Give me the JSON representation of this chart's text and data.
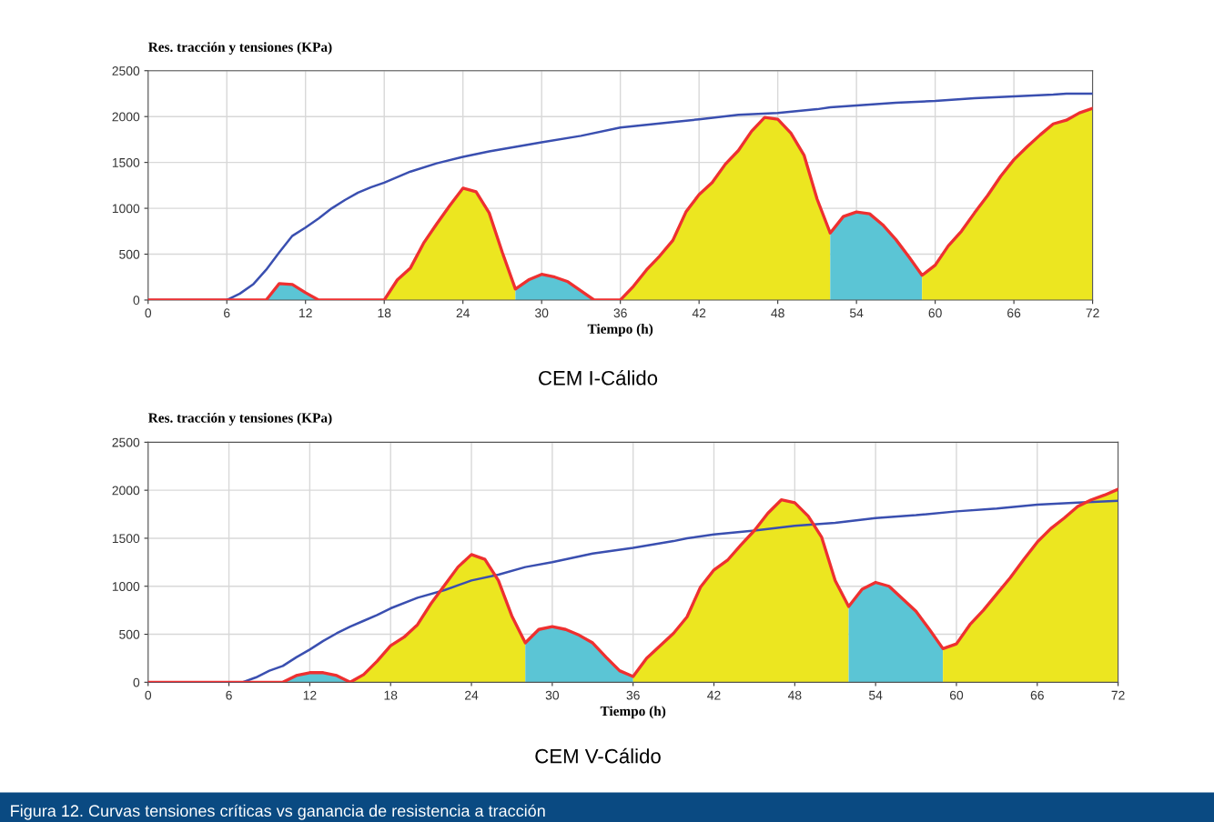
{
  "chart_data": [
    {
      "type": "line",
      "title": "CEM I-Cálido",
      "ylabel": "Res. tracción y tensiones (KPa)",
      "xlabel": "Tiempo (h)",
      "xlim": [
        0,
        72
      ],
      "xticks": [
        0,
        6,
        12,
        18,
        24,
        30,
        36,
        42,
        48,
        54,
        60,
        66,
        72
      ],
      "ylim": [
        0,
        2500
      ],
      "yticks": [
        0,
        500,
        1000,
        1500,
        2000,
        2500
      ],
      "grid": true,
      "legend": false,
      "marker": "none",
      "line_style": "solid",
      "annotations": [
        "Figura 12. Curvas tensiones críticas vs ganancia de resistencia a tracción"
      ],
      "series": [
        {
          "type": "area",
          "color": "#5bc5d5",
          "x": [
            9,
            10,
            11,
            12,
            13
          ],
          "values": [
            0,
            180,
            170,
            80,
            0
          ]
        },
        {
          "type": "area",
          "color": "#ece620",
          "x": [
            18,
            19,
            20,
            21,
            22,
            23,
            24,
            25,
            26,
            27,
            28
          ],
          "values": [
            0,
            220,
            350,
            620,
            830,
            1030,
            1220,
            1180,
            950,
            520,
            120
          ]
        },
        {
          "type": "area",
          "color": "#5bc5d5",
          "x": [
            28,
            29,
            30,
            31,
            32,
            33,
            34
          ],
          "values": [
            120,
            220,
            280,
            250,
            200,
            100,
            0
          ]
        },
        {
          "type": "area",
          "color": "#ece620",
          "x": [
            36,
            37,
            38,
            39,
            40,
            41,
            42,
            43,
            44,
            45,
            46,
            47,
            48,
            49,
            50,
            51,
            52
          ],
          "values": [
            0,
            150,
            330,
            480,
            650,
            960,
            1150,
            1280,
            1480,
            1630,
            1840,
            1990,
            1970,
            1820,
            1580,
            1100,
            730
          ]
        },
        {
          "type": "area",
          "color": "#5bc5d5",
          "x": [
            52,
            53,
            54,
            55,
            56,
            57,
            58,
            59
          ],
          "values": [
            730,
            910,
            960,
            940,
            820,
            660,
            470,
            270
          ]
        },
        {
          "type": "area",
          "color": "#ece620",
          "x": [
            59,
            60,
            61,
            62,
            63,
            64,
            65,
            66,
            67,
            68,
            69,
            70,
            71,
            72
          ],
          "values": [
            270,
            380,
            590,
            750,
            950,
            1140,
            1350,
            1530,
            1670,
            1800,
            1920,
            1960,
            2040,
            2090
          ]
        },
        {
          "type": "line",
          "color": "#3a4fb0",
          "x": [
            0,
            6,
            7,
            8,
            9,
            10,
            11,
            12,
            13,
            14,
            15,
            16,
            17,
            18,
            20,
            22,
            24,
            26,
            28,
            30,
            33,
            36,
            40,
            42,
            45,
            48,
            51,
            52,
            54,
            57,
            60,
            63,
            66,
            69,
            70,
            72
          ],
          "values": [
            0,
            0,
            70,
            170,
            330,
            520,
            700,
            790,
            890,
            1000,
            1090,
            1170,
            1230,
            1280,
            1400,
            1490,
            1560,
            1620,
            1670,
            1720,
            1790,
            1880,
            1940,
            1970,
            2020,
            2040,
            2080,
            2100,
            2120,
            2150,
            2170,
            2200,
            2220,
            2240,
            2250,
            2250
          ]
        },
        {
          "type": "line",
          "color": "#ee3030",
          "x": [
            0,
            1,
            2,
            3,
            4,
            5,
            6,
            7,
            8,
            9,
            10,
            11,
            12,
            13,
            14,
            15,
            16,
            17,
            18,
            19,
            20,
            21,
            22,
            23,
            24,
            25,
            26,
            27,
            28,
            29,
            30,
            31,
            32,
            33,
            34,
            35,
            36,
            37,
            38,
            39,
            40,
            41,
            42,
            43,
            44,
            45,
            46,
            47,
            48,
            49,
            50,
            51,
            52,
            53,
            54,
            55,
            56,
            57,
            58,
            59,
            60,
            61,
            62,
            63,
            64,
            65,
            66,
            67,
            68,
            69,
            70,
            71,
            72
          ],
          "values": [
            0,
            0,
            0,
            0,
            0,
            0,
            0,
            0,
            0,
            0,
            180,
            170,
            80,
            0,
            0,
            0,
            0,
            0,
            0,
            220,
            350,
            620,
            830,
            1030,
            1220,
            1180,
            950,
            520,
            120,
            220,
            280,
            250,
            200,
            100,
            0,
            0,
            0,
            150,
            330,
            480,
            650,
            960,
            1150,
            1280,
            1480,
            1630,
            1840,
            1990,
            1970,
            1820,
            1580,
            1100,
            730,
            910,
            960,
            940,
            820,
            660,
            470,
            270,
            380,
            590,
            750,
            950,
            1140,
            1350,
            1530,
            1670,
            1800,
            1920,
            1960,
            2040,
            2090
          ]
        }
      ]
    },
    {
      "type": "line",
      "title": "CEM V-Cálido",
      "ylabel": "Res. tracción y tensiones (KPa)",
      "xlabel": "Tiempo (h)",
      "xlim": [
        0,
        72
      ],
      "xticks": [
        0,
        6,
        12,
        18,
        24,
        30,
        36,
        42,
        48,
        54,
        60,
        66,
        72
      ],
      "ylim": [
        0,
        2500
      ],
      "yticks": [
        0,
        500,
        1000,
        1500,
        2000,
        2500
      ],
      "grid": true,
      "legend": false,
      "marker": "none",
      "line_style": "solid",
      "series": [
        {
          "type": "area",
          "color": "#5bc5d5",
          "x": [
            10,
            11,
            12,
            13,
            14,
            15
          ],
          "values": [
            0,
            70,
            100,
            100,
            70,
            0
          ]
        },
        {
          "type": "area",
          "color": "#ece620",
          "x": [
            15,
            16,
            17,
            18,
            19,
            20,
            21,
            22,
            23,
            24,
            25,
            26,
            27,
            28
          ],
          "values": [
            0,
            80,
            220,
            380,
            470,
            600,
            820,
            1010,
            1200,
            1330,
            1280,
            1060,
            690,
            410
          ]
        },
        {
          "type": "area",
          "color": "#5bc5d5",
          "x": [
            28,
            29,
            30,
            31,
            32,
            33,
            34,
            35,
            36
          ],
          "values": [
            410,
            550,
            580,
            550,
            490,
            410,
            260,
            120,
            60
          ]
        },
        {
          "type": "area",
          "color": "#ece620",
          "x": [
            36,
            37,
            38,
            39,
            40,
            41,
            42,
            43,
            44,
            45,
            46,
            47,
            48,
            49,
            50,
            51,
            52
          ],
          "values": [
            60,
            250,
            380,
            510,
            680,
            990,
            1170,
            1270,
            1430,
            1580,
            1760,
            1900,
            1870,
            1730,
            1510,
            1060,
            790
          ]
        },
        {
          "type": "area",
          "color": "#5bc5d5",
          "x": [
            52,
            53,
            54,
            55,
            56,
            57,
            58,
            59
          ],
          "values": [
            790,
            970,
            1040,
            1000,
            870,
            740,
            550,
            350
          ]
        },
        {
          "type": "area",
          "color": "#ece620",
          "x": [
            59,
            60,
            61,
            62,
            63,
            64,
            65,
            66,
            67,
            68,
            69,
            70,
            71,
            72
          ],
          "values": [
            350,
            400,
            600,
            750,
            920,
            1090,
            1280,
            1460,
            1600,
            1710,
            1830,
            1900,
            1950,
            2010
          ]
        },
        {
          "type": "line",
          "color": "#3a4fb0",
          "x": [
            0,
            7,
            8,
            9,
            10,
            11,
            12,
            13,
            14,
            15,
            16,
            17,
            18,
            20,
            22,
            24,
            26,
            28,
            30,
            33,
            36,
            39,
            40,
            42,
            45,
            48,
            51,
            54,
            57,
            60,
            63,
            66,
            69,
            72
          ],
          "values": [
            0,
            0,
            50,
            120,
            170,
            260,
            340,
            430,
            510,
            580,
            640,
            700,
            770,
            880,
            960,
            1060,
            1120,
            1200,
            1250,
            1340,
            1400,
            1470,
            1500,
            1540,
            1580,
            1630,
            1660,
            1710,
            1740,
            1780,
            1810,
            1850,
            1870,
            1890
          ]
        },
        {
          "type": "line",
          "color": "#ee3030",
          "x": [
            0,
            1,
            2,
            3,
            4,
            5,
            6,
            7,
            8,
            9,
            10,
            11,
            12,
            13,
            14,
            15,
            16,
            17,
            18,
            19,
            20,
            21,
            22,
            23,
            24,
            25,
            26,
            27,
            28,
            29,
            30,
            31,
            32,
            33,
            34,
            35,
            36,
            37,
            38,
            39,
            40,
            41,
            42,
            43,
            44,
            45,
            46,
            47,
            48,
            49,
            50,
            51,
            52,
            53,
            54,
            55,
            56,
            57,
            58,
            59,
            60,
            61,
            62,
            63,
            64,
            65,
            66,
            67,
            68,
            69,
            70,
            71,
            72
          ],
          "values": [
            0,
            0,
            0,
            0,
            0,
            0,
            0,
            0,
            0,
            0,
            0,
            70,
            100,
            100,
            70,
            0,
            80,
            220,
            380,
            470,
            600,
            820,
            1010,
            1200,
            1330,
            1280,
            1060,
            690,
            410,
            550,
            580,
            550,
            490,
            410,
            260,
            120,
            60,
            250,
            380,
            510,
            680,
            990,
            1170,
            1270,
            1430,
            1580,
            1760,
            1900,
            1870,
            1730,
            1510,
            1060,
            790,
            970,
            1040,
            1000,
            870,
            740,
            550,
            350,
            400,
            600,
            750,
            920,
            1090,
            1280,
            1460,
            1600,
            1710,
            1830,
            1900,
            1950,
            2010
          ]
        }
      ]
    }
  ]
}
